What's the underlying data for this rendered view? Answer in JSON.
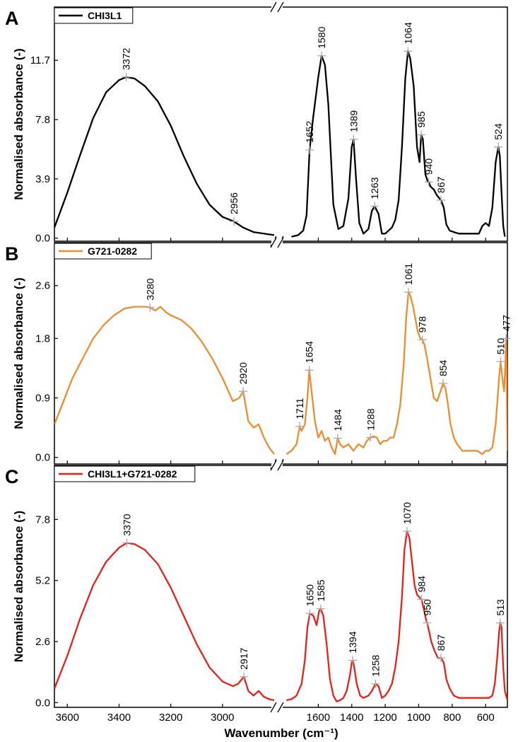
{
  "chart_data": [
    {
      "type": "line",
      "panel": "A",
      "legend": "CHI3L1",
      "color": "#000000",
      "ylabel": "Normalised absorbance (-)",
      "yticks": [
        "0.0",
        "3.9",
        "7.8",
        "11.7"
      ],
      "ylim": [
        -0.2,
        15.2
      ],
      "peaks": [
        {
          "x": 3372,
          "y": 10.6,
          "label": "3372"
        },
        {
          "x": 2956,
          "y": 1.1,
          "label": "2956"
        },
        {
          "x": 1652,
          "y": 5.8,
          "label": "1652"
        },
        {
          "x": 1580,
          "y": 12.0,
          "label": "1580"
        },
        {
          "x": 1389,
          "y": 6.5,
          "label": "1389"
        },
        {
          "x": 1263,
          "y": 2.1,
          "label": "1263"
        },
        {
          "x": 1064,
          "y": 12.3,
          "label": "1064"
        },
        {
          "x": 985,
          "y": 6.8,
          "label": "985"
        },
        {
          "x": 940,
          "y": 3.7,
          "label": "940"
        },
        {
          "x": 867,
          "y": 2.5,
          "label": "867"
        },
        {
          "x": 524,
          "y": 6.0,
          "label": "524"
        }
      ],
      "series": [
        {
          "name": "CHI3L1",
          "x": [
            3650,
            3600,
            3550,
            3500,
            3450,
            3400,
            3372,
            3340,
            3300,
            3250,
            3200,
            3150,
            3100,
            3050,
            3000,
            2956,
            2920,
            2880,
            2840,
            2800
          ],
          "values": [
            0.7,
            3.0,
            5.5,
            7.9,
            9.6,
            10.4,
            10.6,
            10.5,
            10.0,
            9.0,
            7.4,
            5.4,
            3.6,
            2.2,
            1.4,
            1.1,
            0.7,
            0.4,
            0.3,
            0.2
          ]
        },
        {
          "name": "CHI3L1",
          "x": [
            1760,
            1720,
            1690,
            1670,
            1652,
            1630,
            1600,
            1580,
            1560,
            1540,
            1510,
            1480,
            1450,
            1420,
            1400,
            1389,
            1375,
            1355,
            1330,
            1300,
            1280,
            1263,
            1240,
            1220,
            1200,
            1180,
            1160,
            1140,
            1120,
            1100,
            1080,
            1064,
            1050,
            1030,
            1010,
            995,
            985,
            975,
            960,
            945,
            940,
            930,
            910,
            890,
            867,
            850,
            835,
            815,
            790,
            760,
            730,
            700,
            680,
            660,
            640,
            620,
            600,
            580,
            560,
            540,
            524,
            515,
            505,
            495,
            485
          ],
          "values": [
            0.1,
            0.2,
            0.5,
            1.5,
            5.8,
            8.0,
            10.6,
            12.0,
            11.4,
            8.8,
            2.2,
            0.6,
            0.8,
            2.6,
            6.0,
            6.5,
            4.0,
            1.0,
            0.3,
            0.6,
            1.8,
            2.1,
            1.6,
            0.3,
            0.3,
            0.5,
            0.7,
            1.2,
            2.5,
            6.0,
            10.5,
            12.3,
            11.8,
            10.0,
            6.0,
            5.0,
            6.8,
            6.5,
            4.2,
            3.7,
            3.7,
            3.4,
            3.2,
            2.8,
            2.5,
            2.0,
            0.9,
            0.5,
            0.4,
            0.3,
            0.3,
            0.3,
            0.3,
            0.3,
            0.3,
            0.8,
            1.0,
            0.8,
            2.0,
            5.0,
            6.0,
            5.4,
            3.0,
            0.8,
            0.1
          ]
        }
      ]
    },
    {
      "type": "line",
      "panel": "B",
      "legend": "G721-0282",
      "color": "#ed8d32",
      "ylabel": "Normalised absorbance (-)",
      "yticks": [
        "0.0",
        "0.9",
        "1.8",
        "2.6"
      ],
      "ylim": [
        -0.1,
        3.25
      ],
      "peaks": [
        {
          "x": 3280,
          "y": 2.27,
          "label": "3280"
        },
        {
          "x": 2920,
          "y": 1.0,
          "label": "2920"
        },
        {
          "x": 1711,
          "y": 0.47,
          "label": "1711"
        },
        {
          "x": 1654,
          "y": 1.32,
          "label": "1654"
        },
        {
          "x": 1484,
          "y": 0.29,
          "label": "1484"
        },
        {
          "x": 1288,
          "y": 0.3,
          "label": "1288"
        },
        {
          "x": 1061,
          "y": 2.5,
          "label": "1061"
        },
        {
          "x": 978,
          "y": 1.78,
          "label": "978"
        },
        {
          "x": 854,
          "y": 1.12,
          "label": "854"
        },
        {
          "x": 510,
          "y": 1.45,
          "label": "510"
        },
        {
          "x": 477,
          "y": 1.8,
          "label": "477"
        }
      ],
      "series": [
        {
          "name": "G721-0282",
          "x": [
            3650,
            3620,
            3580,
            3540,
            3500,
            3460,
            3420,
            3380,
            3340,
            3300,
            3280,
            3260,
            3240,
            3220,
            3200,
            3160,
            3120,
            3080,
            3040,
            3000,
            2960,
            2935,
            2920,
            2900,
            2880,
            2860,
            2840,
            2820,
            2800
          ],
          "values": [
            0.5,
            0.8,
            1.2,
            1.5,
            1.8,
            2.0,
            2.15,
            2.25,
            2.28,
            2.28,
            2.27,
            2.22,
            2.28,
            2.2,
            2.15,
            2.08,
            1.95,
            1.75,
            1.5,
            1.2,
            0.85,
            0.9,
            1.0,
            0.55,
            0.45,
            0.5,
            0.3,
            0.15,
            0.05
          ]
        },
        {
          "name": "G721-0282",
          "x": [
            1790,
            1760,
            1730,
            1711,
            1700,
            1680,
            1665,
            1654,
            1640,
            1620,
            1600,
            1580,
            1560,
            1540,
            1520,
            1500,
            1484,
            1470,
            1450,
            1420,
            1390,
            1360,
            1330,
            1310,
            1288,
            1270,
            1250,
            1230,
            1210,
            1190,
            1170,
            1150,
            1130,
            1110,
            1090,
            1075,
            1061,
            1050,
            1035,
            1020,
            1005,
            990,
            978,
            965,
            950,
            930,
            910,
            890,
            870,
            854,
            840,
            825,
            810,
            790,
            770,
            740,
            710,
            680,
            650,
            620,
            600,
            580,
            560,
            540,
            520,
            510,
            500,
            490,
            484,
            477,
            470
          ],
          "values": [
            0.05,
            0.1,
            0.2,
            0.47,
            0.4,
            0.5,
            0.9,
            1.32,
            1.0,
            0.55,
            0.3,
            0.4,
            0.25,
            0.3,
            0.15,
            0.05,
            0.29,
            0.2,
            0.15,
            0.2,
            0.1,
            0.2,
            0.15,
            0.25,
            0.3,
            0.32,
            0.3,
            0.2,
            0.25,
            0.25,
            0.3,
            0.3,
            0.5,
            0.8,
            1.4,
            2.1,
            2.5,
            2.45,
            2.3,
            2.1,
            1.9,
            1.8,
            1.78,
            1.7,
            1.5,
            1.2,
            0.9,
            0.85,
            1.0,
            1.12,
            1.05,
            0.8,
            0.5,
            0.3,
            0.2,
            0.1,
            0.1,
            0.1,
            0.1,
            0.05,
            0.1,
            0.1,
            0.15,
            0.5,
            1.2,
            1.45,
            1.2,
            1.0,
            1.3,
            1.8,
            0.1
          ]
        }
      ]
    },
    {
      "type": "line",
      "panel": "C",
      "legend": "CHI3L1+G721-0282",
      "color": "#e5211a",
      "ylabel": "Normalised absorbance (-)",
      "xlabel": "Wavenumber (cm⁻¹)",
      "yticks": [
        "0.0",
        "2.6",
        "5.2",
        "7.8"
      ],
      "ylim": [
        -0.2,
        10.1
      ],
      "xticks": [
        "3600",
        "3400",
        "3200",
        "3000",
        "1600",
        "1400",
        "1200",
        "1000",
        "800",
        "600"
      ],
      "peaks": [
        {
          "x": 3370,
          "y": 6.8,
          "label": "3370"
        },
        {
          "x": 2917,
          "y": 1.1,
          "label": "2917"
        },
        {
          "x": 1650,
          "y": 3.8,
          "label": "1650"
        },
        {
          "x": 1585,
          "y": 4.0,
          "label": "1585"
        },
        {
          "x": 1394,
          "y": 1.8,
          "label": "1394"
        },
        {
          "x": 1258,
          "y": 0.8,
          "label": "1258"
        },
        {
          "x": 1070,
          "y": 7.3,
          "label": "1070"
        },
        {
          "x": 984,
          "y": 4.4,
          "label": "984"
        },
        {
          "x": 950,
          "y": 3.4,
          "label": "950"
        },
        {
          "x": 867,
          "y": 1.9,
          "label": "867"
        },
        {
          "x": 513,
          "y": 3.4,
          "label": "513"
        }
      ],
      "series": [
        {
          "name": "CHI3L1+G721-0282",
          "x": [
            3650,
            3600,
            3550,
            3500,
            3450,
            3400,
            3370,
            3340,
            3300,
            3250,
            3200,
            3150,
            3100,
            3050,
            3000,
            2960,
            2940,
            2917,
            2900,
            2880,
            2860,
            2840,
            2820,
            2800
          ],
          "values": [
            0.6,
            2.0,
            3.6,
            5.0,
            6.0,
            6.6,
            6.8,
            6.75,
            6.5,
            5.9,
            4.9,
            3.7,
            2.5,
            1.5,
            0.9,
            0.7,
            0.8,
            1.1,
            0.5,
            0.3,
            0.5,
            0.25,
            0.15,
            0.1
          ]
        },
        {
          "name": "CHI3L1+G721-0282",
          "x": [
            1790,
            1760,
            1730,
            1700,
            1680,
            1665,
            1650,
            1630,
            1610,
            1595,
            1585,
            1570,
            1550,
            1530,
            1510,
            1490,
            1470,
            1450,
            1430,
            1410,
            1400,
            1394,
            1385,
            1370,
            1350,
            1330,
            1300,
            1280,
            1258,
            1240,
            1220,
            1200,
            1180,
            1160,
            1140,
            1120,
            1100,
            1085,
            1070,
            1055,
            1040,
            1025,
            1010,
            998,
            984,
            970,
            955,
            950,
            940,
            925,
            905,
            885,
            867,
            850,
            835,
            815,
            790,
            760,
            730,
            700,
            680,
            660,
            640,
            620,
            600,
            580,
            560,
            545,
            530,
            520,
            513,
            505,
            495,
            485,
            470
          ],
          "values": [
            0.1,
            0.15,
            0.3,
            0.8,
            1.8,
            3.2,
            3.8,
            3.7,
            3.3,
            3.9,
            4.0,
            3.7,
            2.5,
            1.0,
            0.3,
            0.05,
            0.1,
            0.2,
            0.5,
            1.2,
            1.7,
            1.8,
            1.5,
            0.8,
            0.3,
            0.2,
            0.3,
            0.5,
            0.8,
            0.7,
            0.2,
            0.3,
            0.5,
            0.8,
            1.5,
            2.6,
            4.5,
            6.5,
            7.3,
            7.0,
            6.0,
            5.0,
            4.6,
            4.5,
            4.4,
            4.0,
            3.5,
            3.4,
            3.1,
            2.6,
            2.2,
            1.9,
            1.9,
            1.7,
            1.0,
            0.6,
            0.3,
            0.2,
            0.2,
            0.2,
            0.2,
            0.2,
            0.2,
            0.2,
            0.2,
            0.2,
            0.3,
            0.8,
            2.0,
            3.0,
            3.4,
            3.2,
            1.5,
            0.5,
            0.1
          ]
        }
      ]
    }
  ]
}
